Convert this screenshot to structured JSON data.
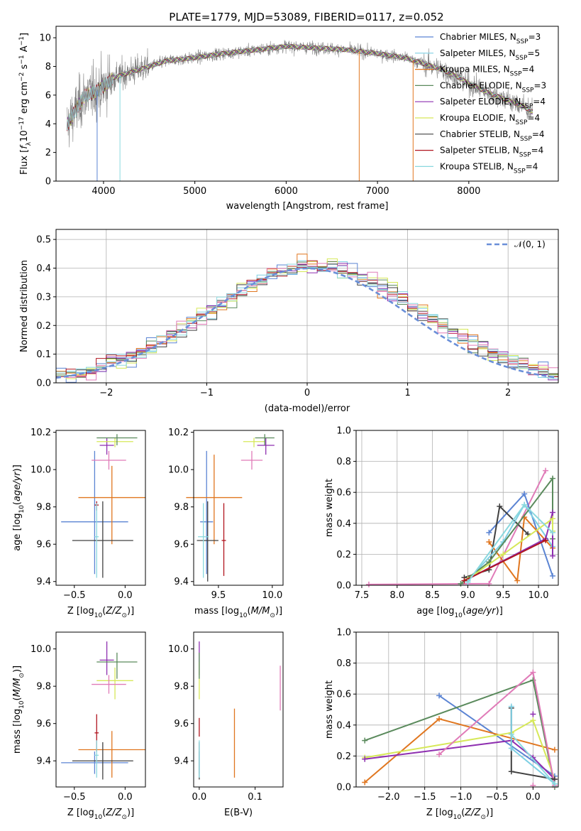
{
  "figure_title": "PLATE=1779, MJD=53089, FIBERID=0117, z=0.052",
  "colors": {
    "Chabrier MILES": "#5b84d3",
    "Salpeter MILES": "#7ecfe3",
    "Kroupa MILES": "#e0761f",
    "Chabrier ELODIE": "#5a8a5c",
    "Salpeter ELODIE": "#8e2fb0",
    "Kroupa ELODIE": "#d6e858",
    "Chabrier STELIB": "#404040",
    "Salpeter STELIB": "#b0141e",
    "Kroupa STELIB": "#8ad8de",
    "extra_pink": "#e07bb8",
    "data_gray": "#808080"
  },
  "chart_data": [
    {
      "id": "spectrum",
      "type": "line",
      "xlabel": "wavelength [Angstrom, rest frame]",
      "ylabel": "Flux [f_λ 10^-17 erg cm^-2 s^-1 A^-1]",
      "xlim": [
        3480,
        8980
      ],
      "ylim": [
        0,
        10.8
      ],
      "xticks": [
        4000,
        5000,
        6000,
        7000,
        8000
      ],
      "yticks": [
        0,
        2,
        4,
        6,
        8,
        10
      ],
      "grid": false,
      "legend_position": "top-right",
      "series": [
        {
          "name": "Chabrier MILES",
          "label_main": "Chabrier MILES, N",
          "label_sub": "SSP",
          "label_tail": "=3"
        },
        {
          "name": "Salpeter MILES",
          "label_main": "Salpeter MILES, N",
          "label_sub": "SSP",
          "label_tail": "=5"
        },
        {
          "name": "Kroupa MILES",
          "label_main": "Kroupa MILES, N",
          "label_sub": "SSP",
          "label_tail": "=4"
        },
        {
          "name": "Chabrier ELODIE",
          "label_main": "Chabrier ELODIE, N",
          "label_sub": "SSP",
          "label_tail": "=3"
        },
        {
          "name": "Salpeter ELODIE",
          "label_main": "Salpeter ELODIE, N",
          "label_sub": "SSP",
          "label_tail": "=4"
        },
        {
          "name": "Kroupa ELODIE",
          "label_main": "Kroupa ELODIE, N",
          "label_sub": "SSP",
          "label_tail": "=4"
        },
        {
          "name": "Chabrier STELIB",
          "label_main": "Chabrier STELIB, N",
          "label_sub": "SSP",
          "label_tail": "=4"
        },
        {
          "name": "Salpeter STELIB",
          "label_main": "Salpeter STELIB, N",
          "label_sub": "SSP",
          "label_tail": "=4"
        },
        {
          "name": "Kroupa STELIB",
          "label_main": "Kroupa STELIB, N",
          "label_sub": "SSP",
          "label_tail": "=4"
        }
      ],
      "continuum_points": [
        [
          3600,
          3.9
        ],
        [
          3700,
          5.0
        ],
        [
          3800,
          6.0
        ],
        [
          3900,
          6.2
        ],
        [
          4000,
          6.6
        ],
        [
          4100,
          7.2
        ],
        [
          4300,
          7.6
        ],
        [
          4500,
          8.0
        ],
        [
          4700,
          8.4
        ],
        [
          5000,
          8.6
        ],
        [
          5300,
          8.9
        ],
        [
          5600,
          9.1
        ],
        [
          6000,
          9.4
        ],
        [
          6300,
          9.3
        ],
        [
          6600,
          9.2
        ],
        [
          7000,
          8.9
        ],
        [
          7300,
          8.6
        ],
        [
          7500,
          8.2
        ],
        [
          7700,
          7.8
        ],
        [
          7900,
          7.2
        ],
        [
          8000,
          6.8
        ],
        [
          8200,
          6.2
        ],
        [
          8400,
          5.7
        ],
        [
          8600,
          5.2
        ],
        [
          8700,
          4.8
        ]
      ],
      "drops": [
        [
          3930,
          0
        ],
        [
          4180,
          0
        ],
        [
          6800,
          0
        ],
        [
          7390,
          0
        ]
      ]
    },
    {
      "id": "residual_histogram",
      "type": "line",
      "xlabel": "(data-model)/error",
      "ylabel": "Normed distribution",
      "xlim": [
        -2.5,
        2.5
      ],
      "ylim": [
        0,
        0.535
      ],
      "xticks": [
        -2,
        -1,
        0,
        1,
        2
      ],
      "yticks": [
        0.0,
        0.1,
        0.2,
        0.3,
        0.4,
        0.5
      ],
      "grid": true,
      "legend_position": "top-right",
      "legend_label": "𝒩(0, 1)",
      "bin_width": 0.1,
      "x_start": -2.5
    },
    {
      "id": "age_vs_Z",
      "type": "scatter",
      "xlabel": "Z [log10(Z/Z⊙)]",
      "ylabel": "age [log10(age/yr)]",
      "xlim": [
        -0.68,
        0.2
      ],
      "ylim": [
        9.38,
        10.21
      ],
      "xticks": [
        -0.5,
        0.0
      ],
      "yticks": [
        9.4,
        9.6,
        9.8,
        10.0,
        10.2
      ],
      "grid": false,
      "series": [
        {
          "name": "Chabrier MILES",
          "x": -0.3,
          "xerr": 0.33,
          "y": 9.72,
          "yerr": [
            0.28,
            0.38
          ]
        },
        {
          "name": "Kroupa MILES",
          "x": -0.13,
          "xerr": 0.33,
          "y": 9.85,
          "yerr": [
            0.25,
            0.17
          ]
        },
        {
          "name": "Salpeter ELODIE",
          "x": -0.18,
          "xerr": 0.07,
          "y": 10.13,
          "yerr": [
            0.05,
            0.04
          ]
        },
        {
          "name": "Kroupa ELODIE",
          "x": -0.1,
          "xerr": 0.18,
          "y": 10.15,
          "yerr": [
            0.03,
            0.02
          ]
        },
        {
          "name": "Chabrier ELODIE",
          "x": -0.08,
          "xerr": 0.2,
          "y": 10.17,
          "yerr": [
            0.04,
            0.02
          ]
        },
        {
          "name": "Chabrier STELIB",
          "x": -0.22,
          "xerr": 0.3,
          "y": 9.62,
          "yerr": [
            0.2,
            0.21
          ]
        },
        {
          "name": "Salpeter STELIB",
          "x": -0.28,
          "xerr": 0.02,
          "y": 9.81,
          "yerr": [
            0.03,
            0.02
          ]
        },
        {
          "name": "Kroupa STELIB",
          "x": -0.28,
          "xerr": 0.02,
          "y": 9.64,
          "yerr": [
            0.22,
            0.18
          ]
        },
        {
          "name": "extra_pink",
          "x": -0.16,
          "xerr": 0.17,
          "y": 10.05,
          "yerr": [
            0.05,
            0.05
          ]
        }
      ]
    },
    {
      "id": "age_vs_mass",
      "type": "scatter",
      "xlabel": "mass [log10(M/M⊙)]",
      "ylabel": "",
      "xlim": [
        9.27,
        10.1
      ],
      "ylim": [
        9.38,
        10.21
      ],
      "xticks": [
        9.5,
        10.0
      ],
      "yticks": [
        9.4,
        9.6,
        9.8,
        10.0,
        10.2
      ],
      "grid": false,
      "series": [
        {
          "name": "Chabrier MILES",
          "x": 9.39,
          "xerr": 0.06,
          "y": 9.72,
          "yerr": [
            0.28,
            0.38
          ]
        },
        {
          "name": "Kroupa MILES",
          "x": 9.46,
          "xerr": 0.26,
          "y": 9.85,
          "yerr": [
            0.25,
            0.23
          ]
        },
        {
          "name": "Salpeter ELODIE",
          "x": 9.94,
          "xerr": 0.08,
          "y": 10.13,
          "yerr": [
            0.05,
            0.04
          ]
        },
        {
          "name": "Kroupa ELODIE",
          "x": 9.83,
          "xerr": 0.1,
          "y": 10.15,
          "yerr": [
            0.03,
            0.02
          ]
        },
        {
          "name": "Chabrier ELODIE",
          "x": 9.93,
          "xerr": 0.09,
          "y": 10.17,
          "yerr": [
            0.04,
            0.02
          ]
        },
        {
          "name": "Chabrier STELIB",
          "x": 9.4,
          "xerr": 0.1,
          "y": 9.62,
          "yerr": [
            0.22,
            0.21
          ]
        },
        {
          "name": "Salpeter STELIB",
          "x": 9.55,
          "xerr": 0.02,
          "y": 9.62,
          "yerr": [
            0.19,
            0.2
          ]
        },
        {
          "name": "Kroupa STELIB",
          "x": 9.36,
          "xerr": 0.05,
          "y": 9.64,
          "yerr": [
            0.22,
            0.18
          ]
        },
        {
          "name": "extra_pink",
          "x": 9.81,
          "xerr": 0.1,
          "y": 10.05,
          "yerr": [
            0.05,
            0.05
          ]
        }
      ]
    },
    {
      "id": "weight_vs_age",
      "type": "line",
      "xlabel": "age [log10(age/yr)]",
      "ylabel": "mass weight",
      "xlim": [
        7.42,
        10.28
      ],
      "ylim": [
        0,
        1.0
      ],
      "xticks": [
        7.5,
        8.0,
        8.5,
        9.0,
        9.5,
        10.0
      ],
      "yticks": [
        0.0,
        0.2,
        0.4,
        0.6,
        0.8,
        1.0
      ],
      "grid": true,
      "series": [
        {
          "name": "extra_pink",
          "x": [
            7.6,
            9.3,
            10.1
          ],
          "y": [
            0.005,
            0.01,
            0.74
          ]
        },
        {
          "name": "Chabrier MILES",
          "x": [
            9.3,
            9.8,
            10.2
          ],
          "y": [
            0.34,
            0.59,
            0.06
          ]
        },
        {
          "name": "Kroupa MILES",
          "x": [
            9.3,
            9.7,
            9.8,
            10.2
          ],
          "y": [
            0.28,
            0.03,
            0.44,
            0.24
          ]
        },
        {
          "name": "Chabrier STELIB",
          "x": [
            8.95,
            9.3,
            9.45,
            9.85
          ],
          "y": [
            0.05,
            0.1,
            0.51,
            0.33
          ]
        },
        {
          "name": "Salpeter MILES",
          "x": [
            9.0,
            9.5,
            9.8,
            10.2
          ],
          "y": [
            0.03,
            0.28,
            0.52,
            0.25
          ]
        },
        {
          "name": "Chabrier ELODIE",
          "x": [
            8.9,
            9.3,
            10.2,
            10.2
          ],
          "y": [
            0.01,
            0.15,
            0.69,
            0.3
          ]
        },
        {
          "name": "Salpeter ELODIE",
          "x": [
            9.0,
            10.1,
            10.2,
            10.2
          ],
          "y": [
            0.04,
            0.3,
            0.47,
            0.19
          ]
        },
        {
          "name": "Kroupa ELODIE",
          "x": [
            9.0,
            9.5,
            10.2,
            10.2
          ],
          "y": [
            0.04,
            0.2,
            0.43,
            0.35
          ]
        },
        {
          "name": "Salpeter STELIB",
          "x": [
            8.95,
            10.1
          ],
          "y": [
            0.03,
            0.29
          ]
        },
        {
          "name": "Kroupa STELIB",
          "x": [
            9.0,
            9.8,
            10.2
          ],
          "y": [
            0.02,
            0.52,
            0.34
          ]
        }
      ]
    },
    {
      "id": "mass_vs_Z",
      "type": "scatter",
      "xlabel": "Z [log10(Z/Z⊙)]",
      "ylabel": "mass [log10(M/M⊙)]",
      "xlim": [
        -0.68,
        0.2
      ],
      "ylim": [
        9.26,
        10.09
      ],
      "xticks": [
        -0.5,
        0.0
      ],
      "yticks": [
        9.4,
        9.6,
        9.8,
        10.0
      ],
      "grid": false,
      "series": [
        {
          "name": "Chabrier MILES",
          "x": -0.3,
          "xerr": 0.33,
          "y": 9.39,
          "yerr": [
            0.06,
            0.06
          ]
        },
        {
          "name": "Kroupa MILES",
          "x": -0.13,
          "xerr": 0.33,
          "y": 9.46,
          "yerr": [
            0.15,
            0.1
          ]
        },
        {
          "name": "Salpeter ELODIE",
          "x": -0.18,
          "xerr": 0.07,
          "y": 9.94,
          "yerr": [
            0.08,
            0.1
          ]
        },
        {
          "name": "Kroupa ELODIE",
          "x": -0.1,
          "xerr": 0.18,
          "y": 9.83,
          "yerr": [
            0.1,
            0.07
          ]
        },
        {
          "name": "Chabrier ELODIE",
          "x": -0.08,
          "xerr": 0.2,
          "y": 9.93,
          "yerr": [
            0.09,
            0.05
          ]
        },
        {
          "name": "Chabrier STELIB",
          "x": -0.22,
          "xerr": 0.3,
          "y": 9.4,
          "yerr": [
            0.1,
            0.1
          ]
        },
        {
          "name": "Salpeter STELIB",
          "x": -0.28,
          "xerr": 0.02,
          "y": 9.55,
          "yerr": [
            0.1,
            0.1
          ]
        },
        {
          "name": "Kroupa STELIB",
          "x": -0.28,
          "xerr": 0.02,
          "y": 9.43,
          "yerr": [
            0.12,
            0.08
          ]
        },
        {
          "name": "extra_pink",
          "x": -0.16,
          "xerr": 0.17,
          "y": 9.81,
          "yerr": [
            0.05,
            0.05
          ]
        }
      ]
    },
    {
      "id": "mass_vs_ebv",
      "type": "scatter",
      "xlabel": "E(B-V)",
      "ylabel": "",
      "xlim": [
        -0.01,
        0.15
      ],
      "ylim": [
        9.26,
        10.09
      ],
      "xticks": [
        0.0,
        0.1
      ],
      "yticks": [
        9.4,
        9.6,
        9.8,
        10.0
      ],
      "grid": false,
      "series": [
        {
          "name": "Chabrier MILES",
          "x": 0.0,
          "y": 9.39,
          "yerr": [
            0.06,
            0.06
          ]
        },
        {
          "name": "Kroupa MILES",
          "x": 0.063,
          "y": 9.46,
          "yerr": [
            0.15,
            0.22
          ]
        },
        {
          "name": "Salpeter ELODIE",
          "x": 0.0,
          "y": 9.94,
          "yerr": [
            0.08,
            0.1
          ]
        },
        {
          "name": "Kroupa ELODIE",
          "x": 0.0,
          "y": 9.83,
          "yerr": [
            0.1,
            0.1
          ]
        },
        {
          "name": "Chabrier ELODIE",
          "x": 0.0,
          "y": 9.93,
          "yerr": [
            0.09,
            0.05
          ]
        },
        {
          "name": "Chabrier STELIB",
          "x": 0.0,
          "y": 9.4,
          "yerr": [
            0.1,
            0.1
          ]
        },
        {
          "name": "Salpeter STELIB",
          "x": 0.0,
          "y": 9.58,
          "yerr": [
            0.05,
            0.05
          ]
        },
        {
          "name": "Kroupa STELIB",
          "x": 0.0,
          "y": 9.43,
          "yerr": [
            0.12,
            0.08
          ]
        },
        {
          "name": "extra_pink",
          "x": 0.145,
          "y": 9.79,
          "yerr": [
            0.12,
            0.12
          ]
        }
      ]
    },
    {
      "id": "weight_vs_Z",
      "type": "line",
      "xlabel": "Z [log10(Z/Z⊙)]",
      "ylabel": "mass weight",
      "xlim": [
        -2.45,
        0.35
      ],
      "ylim": [
        0,
        1.0
      ],
      "xticks": [
        -2.0,
        -1.5,
        -1.0,
        -0.5,
        0.0
      ],
      "yticks": [
        0.0,
        0.2,
        0.4,
        0.6,
        0.8,
        1.0
      ],
      "grid": true,
      "series": [
        {
          "name": "Chabrier MILES",
          "x": [
            -1.3,
            0.3
          ],
          "y": [
            0.59,
            0.07
          ]
        },
        {
          "name": "Chabrier ELODIE",
          "x": [
            -2.33,
            0.0,
            0.3
          ],
          "y": [
            0.3,
            0.69,
            0.0
          ]
        },
        {
          "name": "Kroupa MILES",
          "x": [
            -2.33,
            -1.3,
            0.3
          ],
          "y": [
            0.03,
            0.44,
            0.24
          ]
        },
        {
          "name": "Kroupa ELODIE",
          "x": [
            -2.33,
            -0.3,
            0.0,
            0.3
          ],
          "y": [
            0.19,
            0.35,
            0.43,
            0.05
          ]
        },
        {
          "name": "Salpeter ELODIE",
          "x": [
            -2.33,
            -0.3,
            0.0,
            0.3
          ],
          "y": [
            0.18,
            0.3,
            0.19,
            0.05
          ]
        },
        {
          "name": "extra_pink",
          "x": [
            -1.3,
            0.0,
            0.3
          ],
          "y": [
            0.21,
            0.74,
            0.01
          ]
        },
        {
          "name": "Chabrier STELIB",
          "x": [
            -0.3,
            -0.3,
            0.3
          ],
          "y": [
            0.51,
            0.1,
            0.05
          ]
        },
        {
          "name": "Salpeter MILES",
          "x": [
            -0.3,
            -0.3,
            0.3
          ],
          "y": [
            0.52,
            0.25,
            0.02
          ]
        },
        {
          "name": "Kroupa STELIB",
          "x": [
            -0.3,
            0.3
          ],
          "y": [
            0.34,
            0.02
          ]
        }
      ],
      "markers": [
        {
          "name": "Salpeter ELODIE",
          "x": 0.0,
          "y": 0.47
        },
        {
          "name": "extra_pink",
          "x": 0.0,
          "y": 0.01
        }
      ]
    }
  ]
}
